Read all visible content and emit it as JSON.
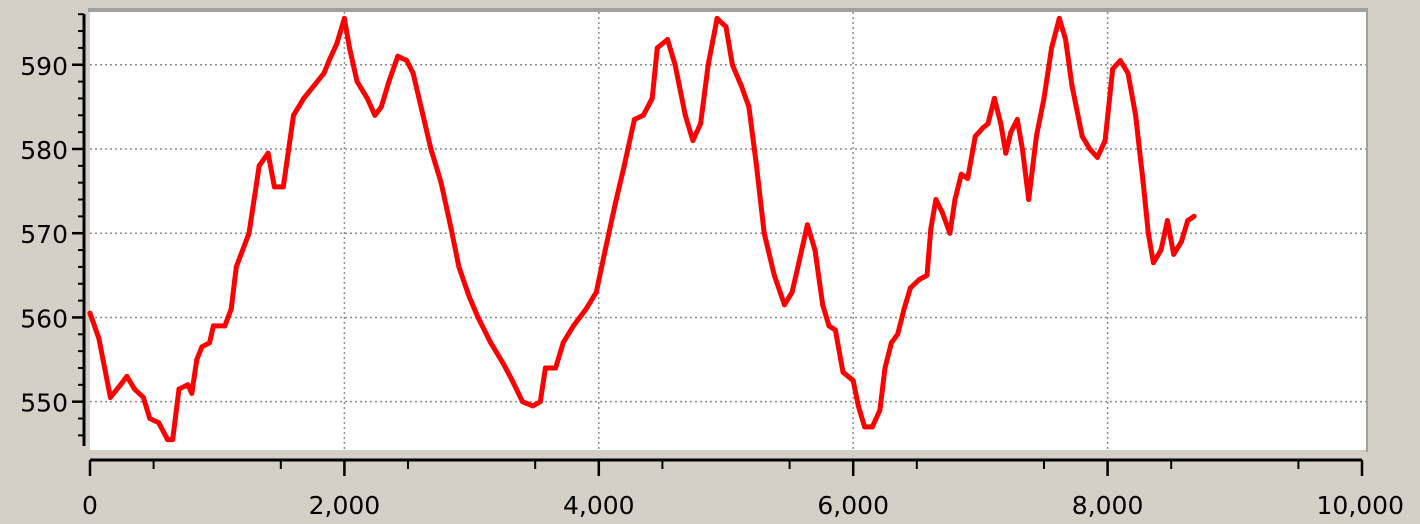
{
  "chart_data": {
    "type": "line",
    "title": "",
    "xlabel": "",
    "ylabel": "",
    "xlim": [
      0,
      10000
    ],
    "ylim": [
      544.5,
      596.5
    ],
    "grid": true,
    "colors": {
      "line": "#ff0000",
      "plot_bg": "#ffffff",
      "frame_bg": "#d4d0c8",
      "grid": "#8c8c8c"
    },
    "x_ticks": [
      {
        "value": 0,
        "label": "0"
      },
      {
        "value": 2000,
        "label": "2,000"
      },
      {
        "value": 4000,
        "label": "4,000"
      },
      {
        "value": 6000,
        "label": "6,000"
      },
      {
        "value": 8000,
        "label": "8,000"
      },
      {
        "value": 10000,
        "label": "10,000"
      }
    ],
    "y_ticks": [
      {
        "value": 550,
        "label": "550"
      },
      {
        "value": 560,
        "label": "560"
      },
      {
        "value": 570,
        "label": "570"
      },
      {
        "value": 580,
        "label": "580"
      },
      {
        "value": 590,
        "label": "590"
      }
    ],
    "series": [
      {
        "name": "",
        "color": "#ff0000",
        "points": [
          [
            0,
            560.5
          ],
          [
            70,
            557.5
          ],
          [
            160,
            550.5
          ],
          [
            240,
            552
          ],
          [
            290,
            553
          ],
          [
            350,
            551.5
          ],
          [
            420,
            550.5
          ],
          [
            470,
            548
          ],
          [
            540,
            547.5
          ],
          [
            610,
            545.5
          ],
          [
            650,
            545.5
          ],
          [
            700,
            551.5
          ],
          [
            770,
            552
          ],
          [
            800,
            551
          ],
          [
            840,
            555
          ],
          [
            880,
            556.5
          ],
          [
            940,
            557
          ],
          [
            970,
            559
          ],
          [
            1060,
            559
          ],
          [
            1110,
            561
          ],
          [
            1150,
            566
          ],
          [
            1250,
            570
          ],
          [
            1330,
            578
          ],
          [
            1400,
            579.5
          ],
          [
            1450,
            575.5
          ],
          [
            1520,
            575.5
          ],
          [
            1600,
            584
          ],
          [
            1680,
            586
          ],
          [
            1760,
            587.5
          ],
          [
            1840,
            589
          ],
          [
            1880,
            590.5
          ],
          [
            1940,
            592.5
          ],
          [
            2000,
            595.5
          ],
          [
            2040,
            592
          ],
          [
            2100,
            588
          ],
          [
            2180,
            586
          ],
          [
            2240,
            584
          ],
          [
            2290,
            585
          ],
          [
            2350,
            588
          ],
          [
            2420,
            591
          ],
          [
            2490,
            590.5
          ],
          [
            2540,
            589
          ],
          [
            2610,
            584.5
          ],
          [
            2680,
            580
          ],
          [
            2760,
            576
          ],
          [
            2840,
            570.5
          ],
          [
            2900,
            566
          ],
          [
            2980,
            562.5
          ],
          [
            3050,
            560
          ],
          [
            3150,
            557
          ],
          [
            3250,
            554.5
          ],
          [
            3320,
            552.5
          ],
          [
            3400,
            550
          ],
          [
            3480,
            549.5
          ],
          [
            3540,
            550
          ],
          [
            3580,
            554
          ],
          [
            3660,
            554
          ],
          [
            3720,
            557
          ],
          [
            3800,
            559
          ],
          [
            3900,
            561
          ],
          [
            3980,
            563
          ],
          [
            4050,
            568
          ],
          [
            4130,
            573.5
          ],
          [
            4200,
            578
          ],
          [
            4280,
            583.5
          ],
          [
            4350,
            584
          ],
          [
            4420,
            586
          ],
          [
            4460,
            592
          ],
          [
            4540,
            593
          ],
          [
            4600,
            590
          ],
          [
            4680,
            584
          ],
          [
            4740,
            581
          ],
          [
            4800,
            583
          ],
          [
            4860,
            590
          ],
          [
            4930,
            595.5
          ],
          [
            5000,
            594.5
          ],
          [
            5050,
            590
          ],
          [
            5120,
            587.5
          ],
          [
            5180,
            585
          ],
          [
            5240,
            578
          ],
          [
            5300,
            570
          ],
          [
            5380,
            565
          ],
          [
            5460,
            561.5
          ],
          [
            5520,
            563
          ],
          [
            5580,
            567
          ],
          [
            5640,
            571
          ],
          [
            5700,
            568
          ],
          [
            5760,
            561.5
          ],
          [
            5810,
            559
          ],
          [
            5860,
            558.5
          ],
          [
            5920,
            553.5
          ],
          [
            6000,
            552.5
          ],
          [
            6040,
            549.5
          ],
          [
            6090,
            547
          ],
          [
            6150,
            547
          ],
          [
            6210,
            549
          ],
          [
            6250,
            554
          ],
          [
            6300,
            557
          ],
          [
            6350,
            558
          ],
          [
            6400,
            561
          ],
          [
            6450,
            563.5
          ],
          [
            6520,
            564.5
          ],
          [
            6580,
            565
          ],
          [
            6610,
            570.5
          ],
          [
            6650,
            574
          ],
          [
            6700,
            572.5
          ],
          [
            6760,
            570
          ],
          [
            6800,
            574
          ],
          [
            6850,
            577
          ],
          [
            6900,
            576.5
          ],
          [
            6960,
            581.5
          ],
          [
            7020,
            582.5
          ],
          [
            7060,
            583
          ],
          [
            7110,
            586
          ],
          [
            7160,
            583
          ],
          [
            7200,
            579.5
          ],
          [
            7240,
            582
          ],
          [
            7290,
            583.5
          ],
          [
            7330,
            580
          ],
          [
            7380,
            574
          ],
          [
            7440,
            581.5
          ],
          [
            7500,
            586
          ],
          [
            7560,
            592
          ],
          [
            7620,
            595.5
          ],
          [
            7670,
            593
          ],
          [
            7720,
            587.5
          ],
          [
            7800,
            581.5
          ],
          [
            7860,
            580
          ],
          [
            7920,
            579
          ],
          [
            7980,
            581
          ],
          [
            8040,
            589.5
          ],
          [
            8100,
            590.5
          ],
          [
            8160,
            589
          ],
          [
            8220,
            584
          ],
          [
            8280,
            576
          ],
          [
            8320,
            570
          ],
          [
            8360,
            566.5
          ],
          [
            8420,
            568
          ],
          [
            8470,
            571.5
          ],
          [
            8520,
            567.5
          ],
          [
            8580,
            569
          ],
          [
            8630,
            571.5
          ],
          [
            8680,
            572
          ]
        ]
      }
    ]
  }
}
